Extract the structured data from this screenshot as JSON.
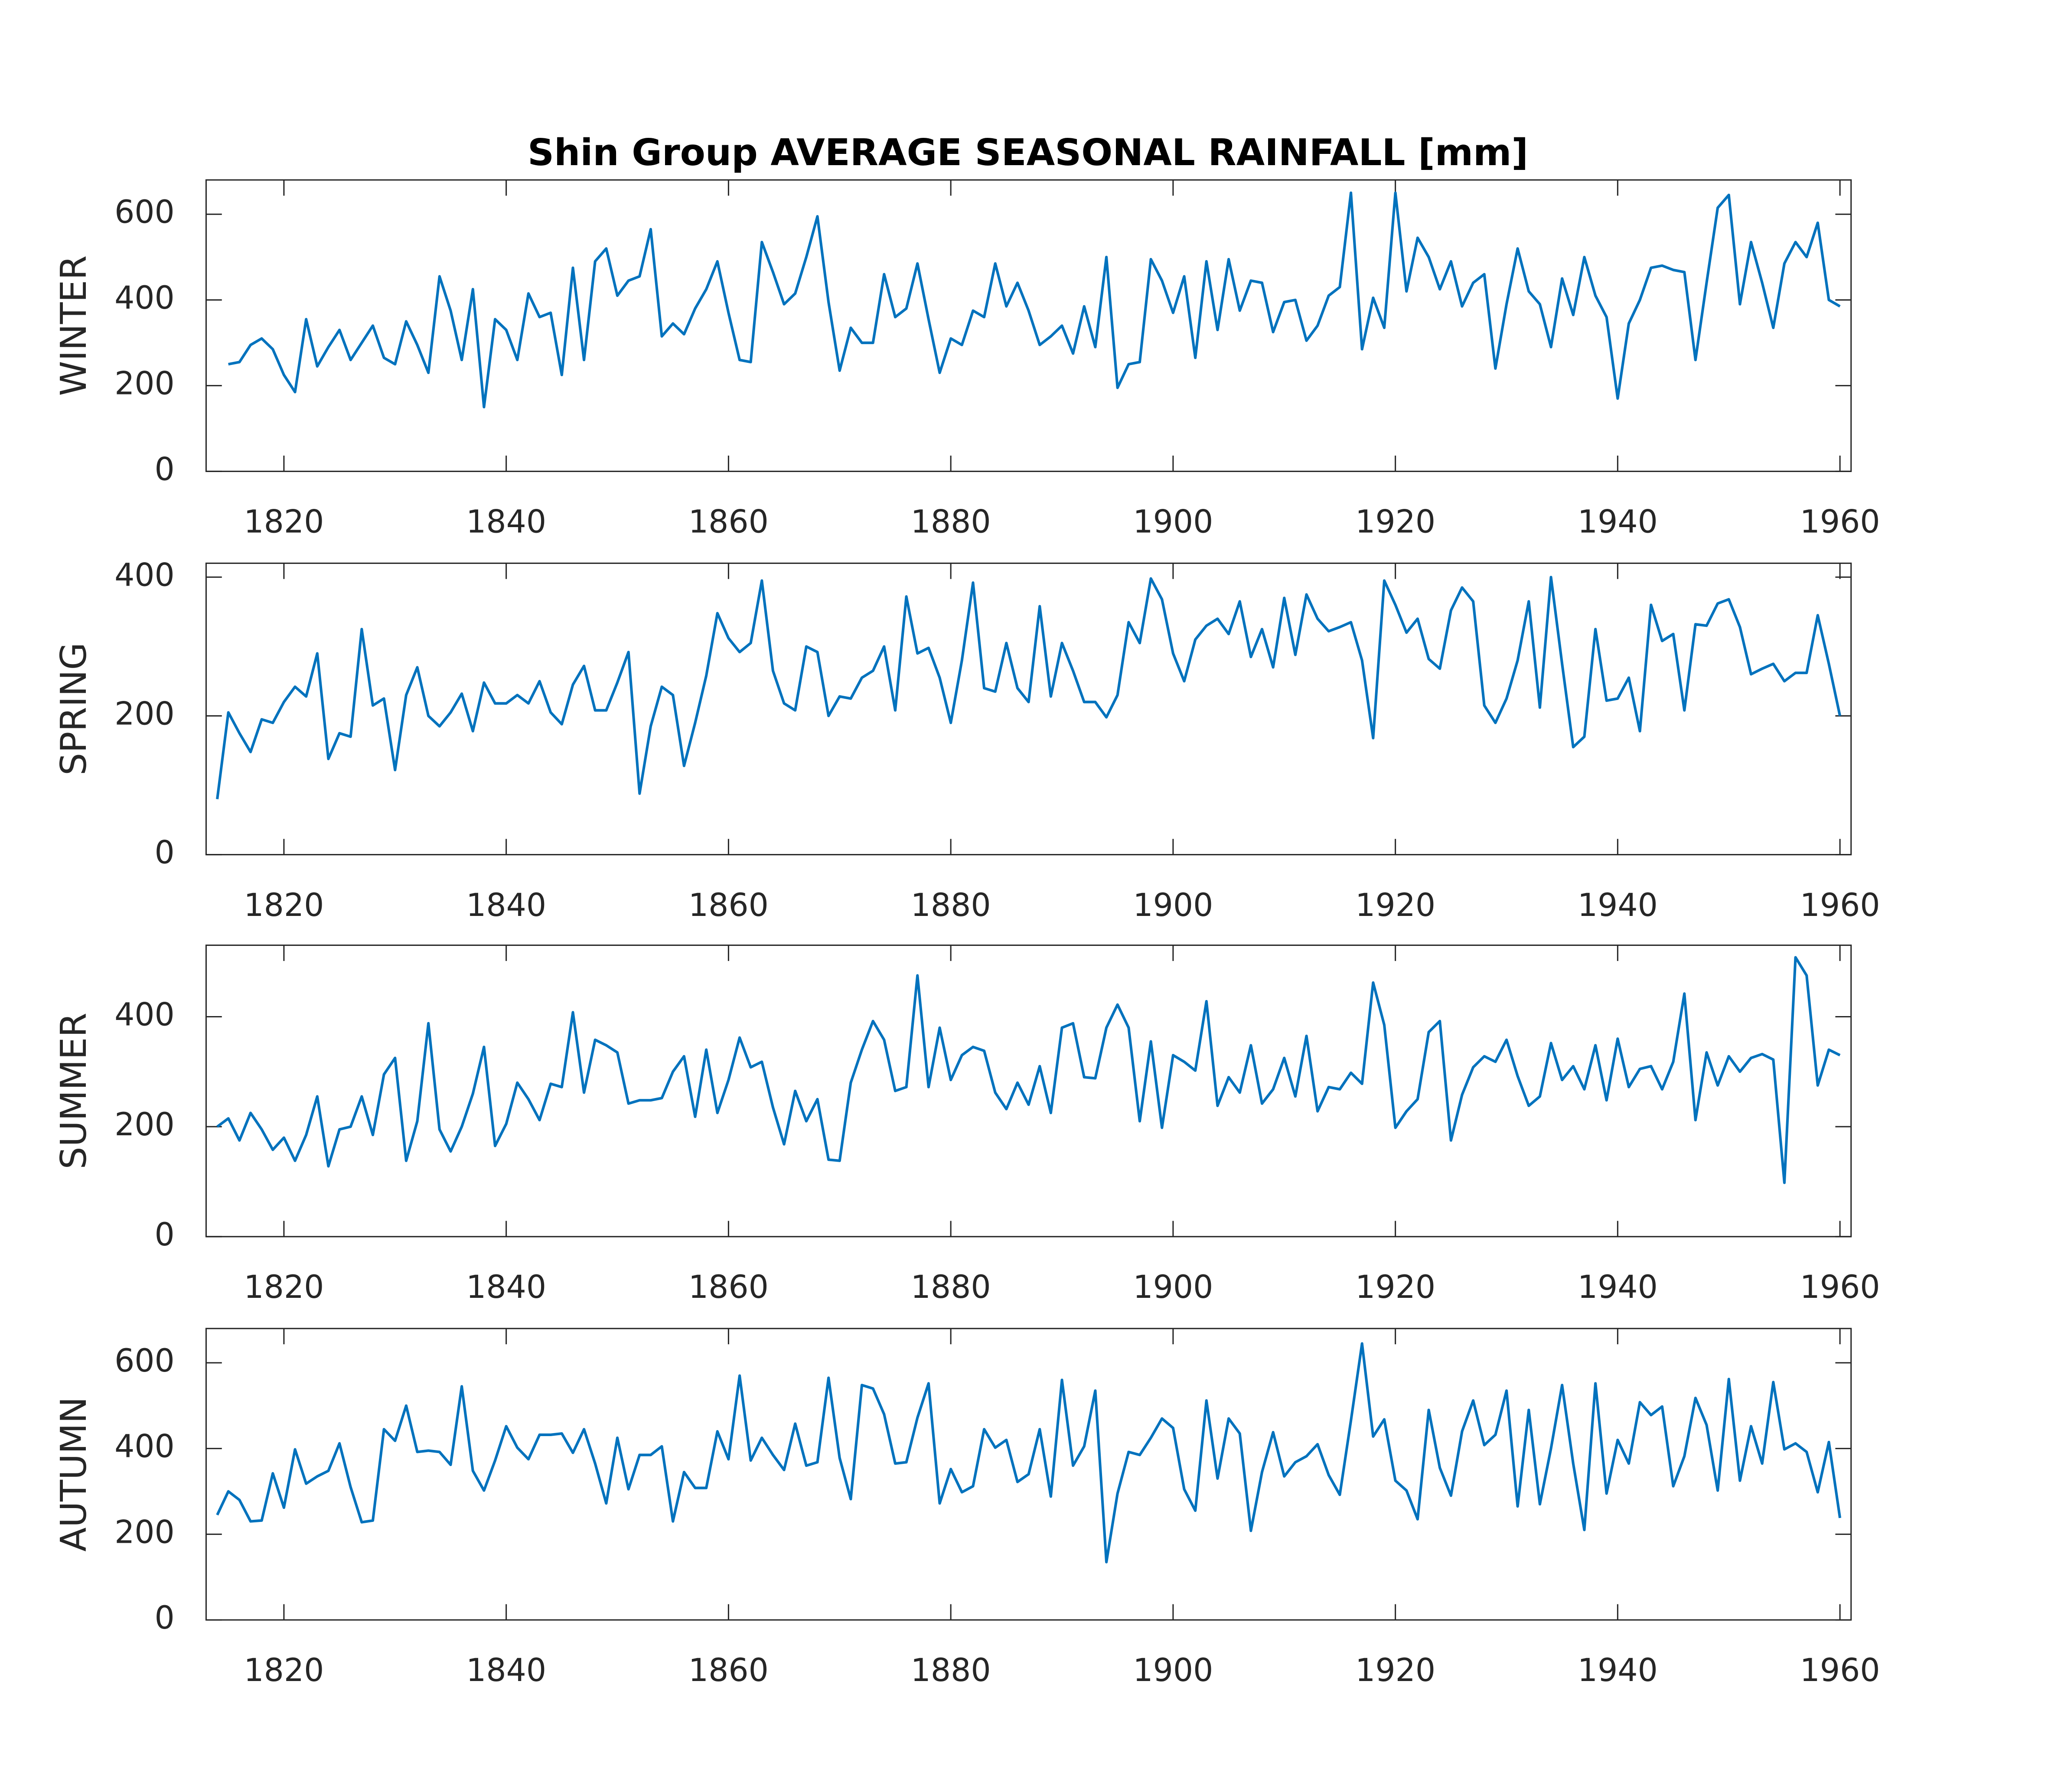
{
  "chart_data": [
    {
      "type": "line",
      "title": "Shin Group AVERAGE SEASONAL RAINFALL [mm]",
      "ylabel": "WINTER",
      "color": "#0072BD",
      "x": [
        1814,
        1815,
        1816,
        1817,
        1818,
        1819,
        1820,
        1821,
        1822,
        1823,
        1824,
        1825,
        1826,
        1827,
        1828,
        1829,
        1830,
        1831,
        1832,
        1833,
        1834,
        1835,
        1836,
        1837,
        1838,
        1839,
        1840,
        1841,
        1842,
        1843,
        1844,
        1845,
        1846,
        1847,
        1848,
        1849,
        1850,
        1851,
        1852,
        1853,
        1854,
        1855,
        1856,
        1857,
        1858,
        1859,
        1860,
        1861,
        1862,
        1863,
        1864,
        1865,
        1866,
        1867,
        1868,
        1869,
        1870,
        1871,
        1872,
        1873,
        1874,
        1875,
        1876,
        1877,
        1878,
        1879,
        1880,
        1881,
        1882,
        1883,
        1884,
        1885,
        1886,
        1887,
        1888,
        1889,
        1890,
        1891,
        1892,
        1893,
        1894,
        1895,
        1896,
        1897,
        1898,
        1899,
        1900,
        1901,
        1902,
        1903,
        1904,
        1905,
        1906,
        1907,
        1908,
        1909,
        1910,
        1911,
        1912,
        1913,
        1914,
        1915,
        1916,
        1917,
        1918,
        1919,
        1920,
        1921,
        1922,
        1923,
        1924,
        1925,
        1926,
        1927,
        1928,
        1929,
        1930,
        1931,
        1932,
        1933,
        1934,
        1935,
        1936,
        1937,
        1938,
        1939,
        1940,
        1941,
        1942,
        1943,
        1944,
        1945,
        1946,
        1947,
        1948,
        1949,
        1950,
        1951,
        1952,
        1953,
        1954,
        1955,
        1956,
        1957,
        1958,
        1959,
        1960
      ],
      "values": [
        null,
        250,
        255,
        295,
        310,
        285,
        225,
        185,
        355,
        245,
        290,
        330,
        260,
        300,
        340,
        265,
        250,
        350,
        295,
        230,
        455,
        375,
        260,
        425,
        150,
        355,
        330,
        260,
        415,
        360,
        370,
        225,
        475,
        260,
        490,
        520,
        410,
        445,
        455,
        565,
        315,
        345,
        320,
        380,
        425,
        490,
        370,
        260,
        255,
        535,
        465,
        390,
        415,
        500,
        595,
        395,
        235,
        335,
        300,
        300,
        460,
        360,
        380,
        485,
        355,
        230,
        310,
        295,
        375,
        360,
        485,
        385,
        440,
        375,
        295,
        315,
        340,
        275,
        385,
        290,
        500,
        195,
        250,
        255,
        495,
        445,
        370,
        455,
        265,
        490,
        330,
        495,
        375,
        445,
        440,
        325,
        395,
        400,
        305,
        340,
        410,
        430,
        650,
        285,
        405,
        335,
        650,
        420,
        545,
        500,
        425,
        490,
        385,
        440,
        460,
        240,
        390,
        520,
        420,
        390,
        290,
        450,
        365,
        500,
        410,
        360,
        170,
        345,
        400,
        475,
        480,
        470,
        465,
        260,
        440,
        615,
        645,
        390,
        535,
        440,
        335,
        485,
        535,
        500,
        580,
        400,
        385
      ],
      "xlim": [
        1813,
        1961
      ],
      "ylim": [
        0,
        680
      ],
      "xticks": [
        1820,
        1840,
        1860,
        1880,
        1900,
        1920,
        1940,
        1960
      ],
      "yticks": [
        0,
        200,
        400,
        600
      ]
    },
    {
      "type": "line",
      "ylabel": "SPRING",
      "color": "#0072BD",
      "x": [
        1814,
        1815,
        1816,
        1817,
        1818,
        1819,
        1820,
        1821,
        1822,
        1823,
        1824,
        1825,
        1826,
        1827,
        1828,
        1829,
        1830,
        1831,
        1832,
        1833,
        1834,
        1835,
        1836,
        1837,
        1838,
        1839,
        1840,
        1841,
        1842,
        1843,
        1844,
        1845,
        1846,
        1847,
        1848,
        1849,
        1850,
        1851,
        1852,
        1853,
        1854,
        1855,
        1856,
        1857,
        1858,
        1859,
        1860,
        1861,
        1862,
        1863,
        1864,
        1865,
        1866,
        1867,
        1868,
        1869,
        1870,
        1871,
        1872,
        1873,
        1874,
        1875,
        1876,
        1877,
        1878,
        1879,
        1880,
        1881,
        1882,
        1883,
        1884,
        1885,
        1886,
        1887,
        1888,
        1889,
        1890,
        1891,
        1892,
        1893,
        1894,
        1895,
        1896,
        1897,
        1898,
        1899,
        1900,
        1901,
        1902,
        1903,
        1904,
        1905,
        1906,
        1907,
        1908,
        1909,
        1910,
        1911,
        1912,
        1913,
        1914,
        1915,
        1916,
        1917,
        1918,
        1919,
        1920,
        1921,
        1922,
        1923,
        1924,
        1925,
        1926,
        1927,
        1928,
        1929,
        1930,
        1931,
        1932,
        1933,
        1934,
        1935,
        1936,
        1937,
        1938,
        1939,
        1940,
        1941,
        1942,
        1943,
        1944,
        1945,
        1946,
        1947,
        1948,
        1949,
        1950,
        1951,
        1952,
        1953,
        1954,
        1955,
        1956,
        1957,
        1958,
        1959,
        1960
      ],
      "values": [
        80,
        205,
        175,
        148,
        195,
        190,
        220,
        242,
        228,
        290,
        138,
        175,
        170,
        325,
        215,
        225,
        122,
        230,
        270,
        200,
        185,
        205,
        232,
        178,
        248,
        218,
        218,
        230,
        218,
        250,
        205,
        188,
        245,
        272,
        208,
        208,
        248,
        292,
        88,
        185,
        242,
        230,
        128,
        190,
        258,
        348,
        312,
        292,
        305,
        395,
        265,
        218,
        208,
        300,
        292,
        200,
        228,
        225,
        255,
        265,
        300,
        208,
        372,
        290,
        298,
        255,
        190,
        280,
        392,
        240,
        235,
        305,
        240,
        220,
        358,
        228,
        305,
        265,
        220,
        220,
        198,
        230,
        335,
        305,
        398,
        368,
        290,
        250,
        310,
        330,
        340,
        318,
        365,
        285,
        325,
        270,
        370,
        288,
        375,
        340,
        322,
        328,
        335,
        280,
        168,
        395,
        360,
        320,
        340,
        282,
        268,
        352,
        385,
        365,
        215,
        190,
        225,
        280,
        365,
        212,
        400,
        275,
        155,
        170,
        325,
        222,
        225,
        255,
        178,
        360,
        308,
        318,
        208,
        332,
        330,
        362,
        368,
        328,
        260,
        268,
        275,
        250,
        262,
        262,
        345,
        275,
        200
      ],
      "xlim": [
        1813,
        1961
      ],
      "ylim": [
        0,
        420
      ],
      "xticks": [
        1820,
        1840,
        1860,
        1880,
        1900,
        1920,
        1940,
        1960
      ],
      "yticks": [
        0,
        200,
        400
      ]
    },
    {
      "type": "line",
      "ylabel": "SUMMER",
      "color": "#0072BD",
      "x": [
        1814,
        1815,
        1816,
        1817,
        1818,
        1819,
        1820,
        1821,
        1822,
        1823,
        1824,
        1825,
        1826,
        1827,
        1828,
        1829,
        1830,
        1831,
        1832,
        1833,
        1834,
        1835,
        1836,
        1837,
        1838,
        1839,
        1840,
        1841,
        1842,
        1843,
        1844,
        1845,
        1846,
        1847,
        1848,
        1849,
        1850,
        1851,
        1852,
        1853,
        1854,
        1855,
        1856,
        1857,
        1858,
        1859,
        1860,
        1861,
        1862,
        1863,
        1864,
        1865,
        1866,
        1867,
        1868,
        1869,
        1870,
        1871,
        1872,
        1873,
        1874,
        1875,
        1876,
        1877,
        1878,
        1879,
        1880,
        1881,
        1882,
        1883,
        1884,
        1885,
        1886,
        1887,
        1888,
        1889,
        1890,
        1891,
        1892,
        1893,
        1894,
        1895,
        1896,
        1897,
        1898,
        1899,
        1900,
        1901,
        1902,
        1903,
        1904,
        1905,
        1906,
        1907,
        1908,
        1909,
        1910,
        1911,
        1912,
        1913,
        1914,
        1915,
        1916,
        1917,
        1918,
        1919,
        1920,
        1921,
        1922,
        1923,
        1924,
        1925,
        1926,
        1927,
        1928,
        1929,
        1930,
        1931,
        1932,
        1933,
        1934,
        1935,
        1936,
        1937,
        1938,
        1939,
        1940,
        1941,
        1942,
        1943,
        1944,
        1945,
        1946,
        1947,
        1948,
        1949,
        1950,
        1951,
        1952,
        1953,
        1954,
        1955,
        1956,
        1957,
        1958,
        1959,
        1960
      ],
      "values": [
        200,
        215,
        175,
        225,
        195,
        158,
        180,
        138,
        185,
        255,
        128,
        195,
        200,
        255,
        185,
        295,
        325,
        138,
        210,
        388,
        195,
        155,
        200,
        260,
        345,
        165,
        205,
        280,
        250,
        212,
        278,
        272,
        408,
        262,
        358,
        348,
        335,
        242,
        248,
        248,
        252,
        300,
        328,
        218,
        340,
        225,
        285,
        362,
        308,
        318,
        235,
        168,
        265,
        210,
        250,
        140,
        138,
        280,
        340,
        392,
        358,
        265,
        272,
        475,
        272,
        380,
        285,
        330,
        345,
        338,
        262,
        232,
        280,
        240,
        310,
        225,
        380,
        388,
        290,
        288,
        380,
        422,
        380,
        210,
        355,
        198,
        330,
        318,
        302,
        428,
        238,
        290,
        262,
        348,
        242,
        268,
        325,
        255,
        365,
        228,
        272,
        268,
        298,
        278,
        462,
        385,
        198,
        228,
        250,
        372,
        392,
        175,
        258,
        308,
        328,
        318,
        358,
        292,
        238,
        255,
        352,
        285,
        310,
        268,
        348,
        248,
        360,
        272,
        305,
        310,
        268,
        318,
        442,
        212,
        335,
        275,
        328,
        300,
        325,
        332,
        322,
        98,
        508,
        475,
        275,
        340,
        330
      ],
      "xlim": [
        1813,
        1961
      ],
      "ylim": [
        0,
        530
      ],
      "xticks": [
        1820,
        1840,
        1860,
        1880,
        1900,
        1920,
        1940,
        1960
      ],
      "yticks": [
        0,
        200,
        400
      ]
    },
    {
      "type": "line",
      "ylabel": "AUTUMN",
      "color": "#0072BD",
      "x": [
        1814,
        1815,
        1816,
        1817,
        1818,
        1819,
        1820,
        1821,
        1822,
        1823,
        1824,
        1825,
        1826,
        1827,
        1828,
        1829,
        1830,
        1831,
        1832,
        1833,
        1834,
        1835,
        1836,
        1837,
        1838,
        1839,
        1840,
        1841,
        1842,
        1843,
        1844,
        1845,
        1846,
        1847,
        1848,
        1849,
        1850,
        1851,
        1852,
        1853,
        1854,
        1855,
        1856,
        1857,
        1858,
        1859,
        1860,
        1861,
        1862,
        1863,
        1864,
        1865,
        1866,
        1867,
        1868,
        1869,
        1870,
        1871,
        1872,
        1873,
        1874,
        1875,
        1876,
        1877,
        1878,
        1879,
        1880,
        1881,
        1882,
        1883,
        1884,
        1885,
        1886,
        1887,
        1888,
        1889,
        1890,
        1891,
        1892,
        1893,
        1894,
        1895,
        1896,
        1897,
        1898,
        1899,
        1900,
        1901,
        1902,
        1903,
        1904,
        1905,
        1906,
        1907,
        1908,
        1909,
        1910,
        1911,
        1912,
        1913,
        1914,
        1915,
        1916,
        1917,
        1918,
        1919,
        1920,
        1921,
        1922,
        1923,
        1924,
        1925,
        1926,
        1927,
        1928,
        1929,
        1930,
        1931,
        1932,
        1933,
        1934,
        1935,
        1936,
        1937,
        1938,
        1939,
        1940,
        1941,
        1942,
        1943,
        1944,
        1945,
        1946,
        1947,
        1948,
        1949,
        1950,
        1951,
        1952,
        1953,
        1954,
        1955,
        1956,
        1957,
        1958,
        1959,
        1960
      ],
      "values": [
        245,
        300,
        280,
        230,
        232,
        342,
        262,
        398,
        318,
        335,
        348,
        412,
        310,
        228,
        232,
        445,
        418,
        500,
        392,
        395,
        392,
        362,
        545,
        348,
        302,
        372,
        452,
        402,
        375,
        432,
        432,
        435,
        390,
        445,
        365,
        272,
        425,
        305,
        385,
        385,
        405,
        230,
        345,
        308,
        308,
        440,
        375,
        570,
        372,
        425,
        385,
        350,
        458,
        360,
        368,
        565,
        378,
        282,
        548,
        540,
        480,
        365,
        368,
        472,
        552,
        272,
        352,
        298,
        312,
        445,
        402,
        420,
        322,
        340,
        445,
        288,
        560,
        360,
        405,
        535,
        135,
        295,
        392,
        385,
        425,
        470,
        448,
        305,
        255,
        512,
        330,
        470,
        435,
        208,
        345,
        438,
        335,
        368,
        382,
        410,
        338,
        292,
        465,
        645,
        428,
        468,
        325,
        302,
        235,
        490,
        355,
        290,
        440,
        512,
        408,
        432,
        535,
        265,
        490,
        270,
        400,
        548,
        365,
        210,
        552,
        295,
        420,
        365,
        508,
        478,
        498,
        312,
        382,
        518,
        455,
        302,
        562,
        325,
        452,
        365,
        555,
        398,
        412,
        392,
        298,
        415,
        238
      ],
      "xlim": [
        1813,
        1961
      ],
      "ylim": [
        0,
        680
      ],
      "xticks": [
        1820,
        1840,
        1860,
        1880,
        1900,
        1920,
        1940,
        1960
      ],
      "yticks": [
        0,
        200,
        400,
        600
      ]
    }
  ]
}
